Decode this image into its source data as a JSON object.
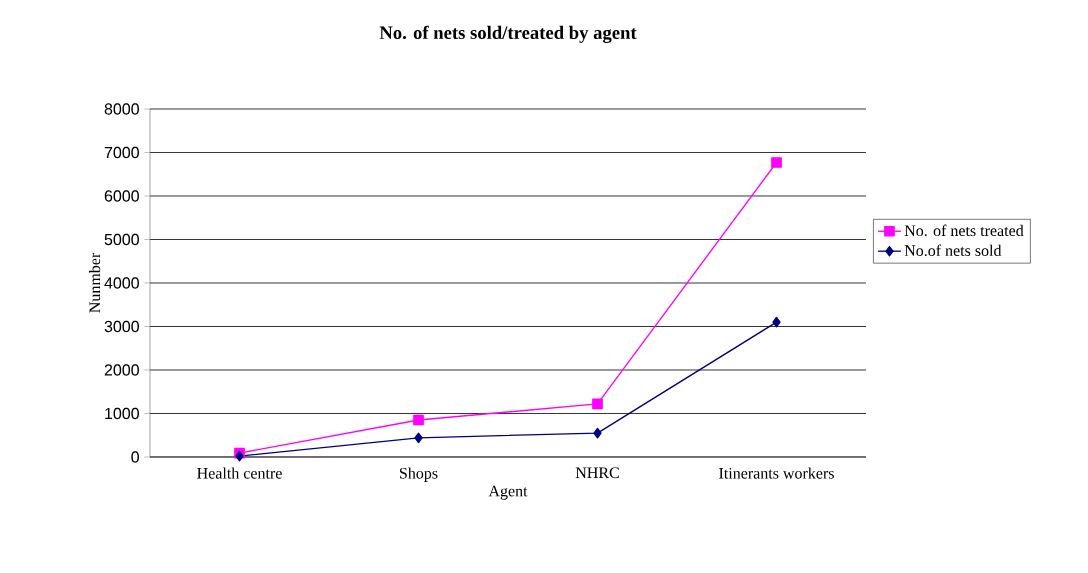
{
  "chart_data": {
    "type": "line",
    "title": "No. of nets sold/treated by agent",
    "xlabel": "Agent",
    "ylabel": "Nunmber",
    "categories": [
      "Health centre",
      "Shops",
      "NHRC",
      "Itinerants workers"
    ],
    "series": [
      {
        "name": "No. of nets treated",
        "color": "#ff00ff",
        "marker": "square",
        "values": [
          90,
          850,
          1220,
          6770
        ]
      },
      {
        "name": "No.of nets sold",
        "color": "#000080",
        "marker": "diamond",
        "values": [
          20,
          440,
          550,
          3100
        ]
      }
    ],
    "ylim": [
      0,
      8000
    ],
    "yticks": [
      0,
      1000,
      2000,
      3000,
      4000,
      5000,
      6000,
      7000,
      8000
    ],
    "grid": "y",
    "legend": "right"
  }
}
